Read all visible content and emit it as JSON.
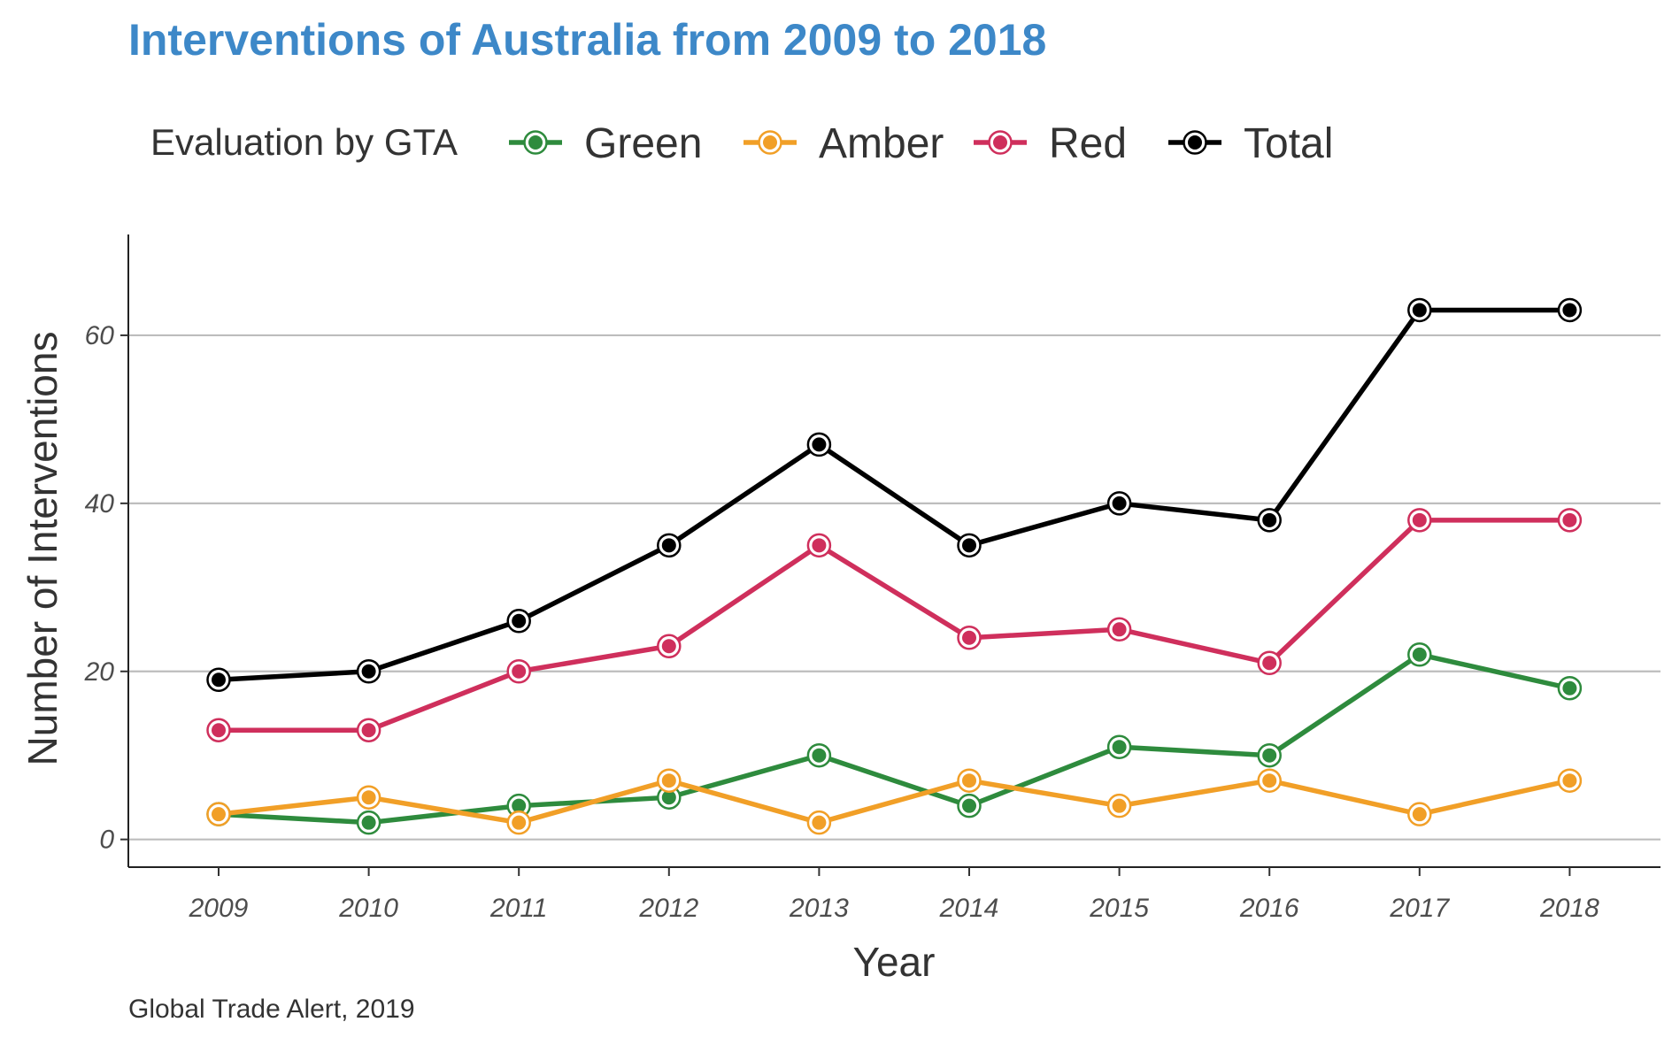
{
  "chart_data": {
    "type": "line",
    "title": "Interventions of Australia from 2009 to 2018",
    "xlabel": "Year",
    "ylabel": "Number of Interventions",
    "caption": "Global Trade Alert, 2019",
    "legend_title": "Evaluation by GTA",
    "legend_position": "top",
    "grid": "horizontal",
    "x": [
      "2009",
      "2010",
      "2011",
      "2012",
      "2013",
      "2014",
      "2015",
      "2016",
      "2017",
      "2018"
    ],
    "ylim": [
      -3.3,
      72
    ],
    "yticks": [
      "0",
      "20",
      "40",
      "60"
    ],
    "series": [
      {
        "name": "Green",
        "color": "#2e8b3d",
        "values": [
          3,
          2,
          4,
          5,
          10,
          4,
          11,
          10,
          22,
          18
        ]
      },
      {
        "name": "Amber",
        "color": "#f19f27",
        "values": [
          3,
          5,
          2,
          7,
          2,
          7,
          4,
          7,
          3,
          7
        ]
      },
      {
        "name": "Red",
        "color": "#cf2f5c",
        "values": [
          13,
          13,
          20,
          23,
          35,
          24,
          25,
          21,
          38,
          38
        ]
      },
      {
        "name": "Total",
        "color": "#000000",
        "values": [
          19,
          20,
          26,
          35,
          47,
          35,
          40,
          38,
          63,
          63
        ]
      }
    ]
  }
}
